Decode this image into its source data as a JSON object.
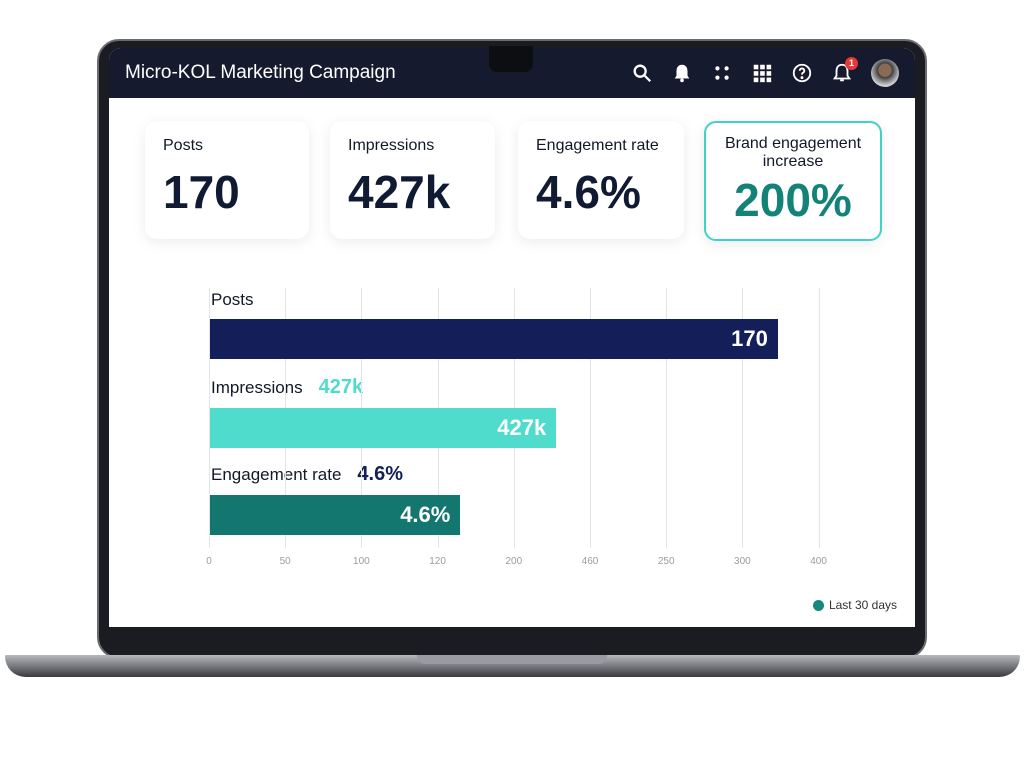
{
  "header": {
    "title": "Micro-KOL Marketing Campaign",
    "icons": [
      "search-icon",
      "bell-icon",
      "dots-icon",
      "grid-icon",
      "help-icon",
      "notification-bell-icon"
    ],
    "notification_count": "1"
  },
  "cards": [
    {
      "label": "Posts",
      "value": "170"
    },
    {
      "label": "Impressions",
      "value": "427k"
    },
    {
      "label": "Engagement rate",
      "value": "4.6%"
    },
    {
      "label": "Brand engagement increase",
      "value": "200%",
      "highlight_color": "#138378"
    }
  ],
  "chart_data": {
    "type": "bar",
    "orientation": "horizontal",
    "categories": [
      "Posts",
      "Impressions",
      "Engagement rate"
    ],
    "value_labels": [
      "170",
      "427k",
      "4.6%"
    ],
    "outside_labels": [
      "",
      "427k",
      "4.6%"
    ],
    "bar_fill_fraction": [
      0.93,
      0.567,
      0.41
    ],
    "colors": [
      "#141f5a",
      "#4fdccc",
      "#13776f"
    ],
    "x_ticks": [
      "0",
      "50",
      "100",
      "120",
      "200",
      "460",
      "250",
      "300",
      "400"
    ],
    "grid": true,
    "legend": {
      "label": "Last 30 days",
      "color": "#13887d",
      "position": "bottom-right"
    }
  }
}
